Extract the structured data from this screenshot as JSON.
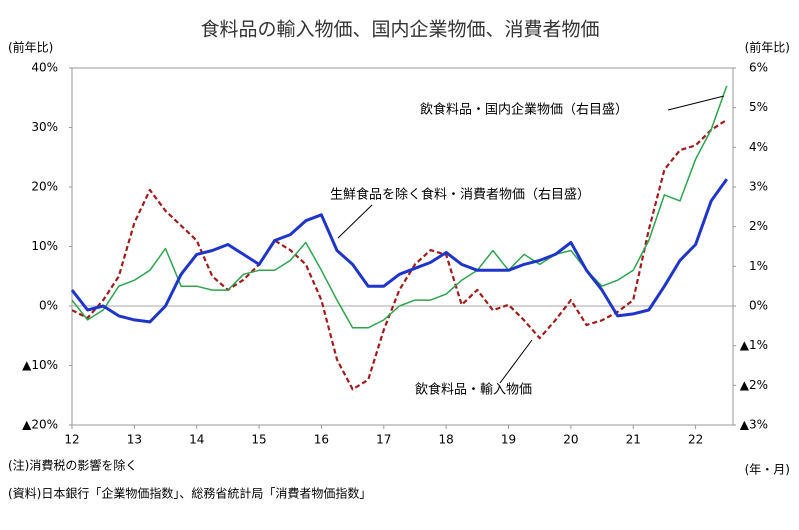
{
  "chart_data": {
    "type": "line",
    "title": "食料品の輸入物価、国内企業物価、消費者物価",
    "y_label": "(前年比)",
    "y2_label": "(前年比)",
    "x_label": "(年・月)",
    "notes": [
      "(注)消費税の影響を除く",
      "(資料)日本銀行「企業物価指数」、総務省統計局「消費者物価指数」"
    ],
    "x": [
      12,
      12.25,
      12.5,
      12.75,
      13,
      13.25,
      13.5,
      13.75,
      14,
      14.25,
      14.5,
      14.75,
      15,
      15.25,
      15.5,
      15.75,
      16,
      16.25,
      16.5,
      16.75,
      17,
      17.25,
      17.5,
      17.75,
      18,
      18.25,
      18.5,
      18.75,
      19,
      19.25,
      19.5,
      19.75,
      20,
      20.25,
      20.5,
      20.75,
      21,
      21.25,
      21.5,
      21.75,
      22,
      22.25,
      22.5
    ],
    "xlim": [
      12,
      22.6
    ],
    "xticks": [
      12,
      13,
      14,
      15,
      16,
      17,
      18,
      19,
      20,
      21,
      22
    ],
    "ylim": [
      -20,
      40
    ],
    "yticks": [
      {
        "value": 40,
        "label": "40%"
      },
      {
        "value": 30,
        "label": "30%"
      },
      {
        "value": 20,
        "label": "20%"
      },
      {
        "value": 10,
        "label": "10%"
      },
      {
        "value": 0,
        "label": "0%"
      },
      {
        "value": -10,
        "label": "▲10%"
      },
      {
        "value": -20,
        "label": "▲20%"
      }
    ],
    "y2lim": [
      -3,
      6
    ],
    "y2ticks": [
      {
        "value": 6,
        "label": "6%"
      },
      {
        "value": 5,
        "label": "5%"
      },
      {
        "value": 4,
        "label": "4%"
      },
      {
        "value": 3,
        "label": "3%"
      },
      {
        "value": 2,
        "label": "2%"
      },
      {
        "value": 1,
        "label": "1%"
      },
      {
        "value": 0,
        "label": "0%"
      },
      {
        "value": -1,
        "label": "▲1%"
      },
      {
        "value": -2,
        "label": "▲2%"
      },
      {
        "value": -3,
        "label": "▲3%"
      }
    ],
    "series": [
      {
        "name": "飲食料品・輸入物価",
        "color": "#a01c1c",
        "dash": true,
        "values": [
          -0.7,
          -2,
          1,
          5,
          14,
          19.5,
          16,
          13.5,
          11,
          5,
          2.7,
          4.4,
          7,
          11,
          9.4,
          7,
          1,
          -9,
          -14,
          -12.4,
          -4,
          2.7,
          7,
          9.4,
          8.6,
          0.2,
          2.7,
          -0.7,
          0.2,
          -2.4,
          -5.4,
          -2.4,
          1,
          -3.2,
          -2.4,
          -1,
          1,
          12.8,
          22.9,
          26.2,
          27,
          29.6,
          31.3
        ]
      },
      {
        "name": "飲食料品・国内企業物価（右目盛）",
        "color": "#2ea44f",
        "axis": "y2",
        "values": [
          0.15,
          -0.35,
          -0.1,
          0.5,
          0.65,
          0.9,
          1.45,
          0.5,
          0.5,
          0.4,
          0.4,
          0.8,
          0.9,
          0.9,
          1.15,
          1.6,
          0.9,
          0.15,
          -0.55,
          -0.55,
          -0.35,
          0,
          0.15,
          0.15,
          0.3,
          0.65,
          0.9,
          1.4,
          0.9,
          1.3,
          1.05,
          1.3,
          1.4,
          0.9,
          0.5,
          0.65,
          0.9,
          1.65,
          2.8,
          2.65,
          3.7,
          4.45,
          5.55
        ]
      },
      {
        "name": "生鮮食品を除く食料・消費者物価（右目盛）",
        "color": "#1f35c8",
        "axis": "y2",
        "width": 3,
        "values": [
          0.4,
          -0.1,
          0,
          -0.25,
          -0.35,
          -0.4,
          0,
          0.8,
          1.3,
          1.4,
          1.55,
          1.3,
          1.05,
          1.65,
          1.8,
          2.15,
          2.3,
          1.4,
          1.05,
          0.5,
          0.5,
          0.8,
          0.95,
          1.1,
          1.35,
          1.05,
          0.9,
          0.9,
          0.9,
          1.05,
          1.15,
          1.3,
          1.6,
          0.9,
          0.4,
          -0.25,
          -0.2,
          -0.1,
          0.5,
          1.15,
          1.55,
          2.65,
          3.2
        ]
      }
    ]
  }
}
